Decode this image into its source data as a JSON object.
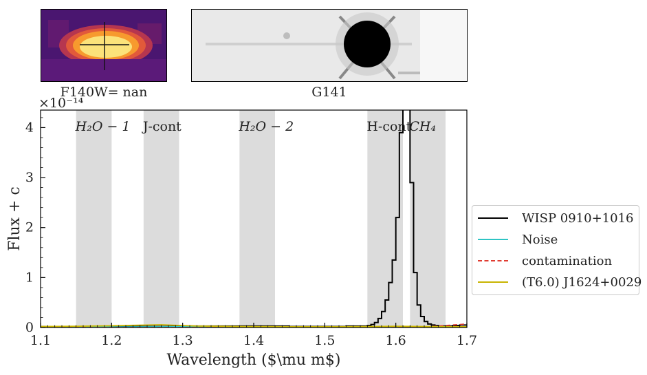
{
  "direct_image": {
    "label": "F140W= nan"
  },
  "grism_image": {
    "label": "G141"
  },
  "colors": {
    "spectrum": "#000000",
    "noise": "#2ec4c4",
    "contamination": "#e03c31",
    "template": "#c8b400",
    "band": "#dcdcdc"
  },
  "chart_data": {
    "type": "line",
    "xlabel": "Wavelength ($\\mu m$)",
    "ylabel": "Flux + c",
    "y_offset_text": "×10⁻¹⁴",
    "xlim": [
      1.1,
      1.7
    ],
    "ylim": [
      0,
      4.35
    ],
    "x_ticks": [
      {
        "v": 1.1,
        "label": "1.1"
      },
      {
        "v": 1.2,
        "label": "1.2"
      },
      {
        "v": 1.3,
        "label": "1.3"
      },
      {
        "v": 1.4,
        "label": "1.4"
      },
      {
        "v": 1.5,
        "label": "1.5"
      },
      {
        "v": 1.6,
        "label": "1.6"
      },
      {
        "v": 1.7,
        "label": "1.7"
      }
    ],
    "y_ticks": [
      {
        "v": 0,
        "label": "0"
      },
      {
        "v": 1,
        "label": "1"
      },
      {
        "v": 2,
        "label": "2"
      },
      {
        "v": 3,
        "label": "3"
      },
      {
        "v": 4,
        "label": "4"
      }
    ],
    "bands": [
      {
        "x0": 1.15,
        "x1": 1.2,
        "label": "H₂O − 1",
        "italic": true
      },
      {
        "x0": 1.245,
        "x1": 1.295,
        "label": "J-cont",
        "italic": false
      },
      {
        "x0": 1.38,
        "x1": 1.43,
        "label": "H₂O − 2",
        "italic": true
      },
      {
        "x0": 1.56,
        "x1": 1.61,
        "label": "H-cont",
        "italic": false
      },
      {
        "x0": 1.62,
        "x1": 1.67,
        "label": "CH₄",
        "italic": true
      }
    ],
    "series": [
      {
        "name": "WISP 0910+1016",
        "style": "step",
        "x": [
          1.1,
          1.3,
          1.45,
          1.53,
          1.56,
          1.565,
          1.57,
          1.575,
          1.58,
          1.585,
          1.59,
          1.595,
          1.6,
          1.605,
          1.61,
          1.615,
          1.62,
          1.625,
          1.63,
          1.635,
          1.64,
          1.645,
          1.65,
          1.655,
          1.66,
          1.67,
          1.68,
          1.69,
          1.7
        ],
        "y": [
          0.02,
          0.03,
          0.02,
          0.03,
          0.04,
          0.06,
          0.1,
          0.18,
          0.32,
          0.55,
          0.9,
          1.35,
          2.2,
          3.9,
          4.6,
          4.6,
          2.9,
          1.1,
          0.45,
          0.22,
          0.12,
          0.07,
          0.05,
          0.04,
          0.03,
          0.03,
          0.04,
          0.05,
          0.06
        ]
      },
      {
        "name": "Noise",
        "style": "line",
        "x": [
          1.1,
          1.2,
          1.3,
          1.4,
          1.5,
          1.6,
          1.65,
          1.7
        ],
        "y": [
          0.01,
          0.01,
          0.015,
          0.01,
          0.01,
          0.012,
          0.01,
          0.01
        ]
      },
      {
        "name": "contamination",
        "style": "dashed",
        "x": [
          1.1,
          1.2,
          1.3,
          1.4,
          1.5,
          1.6,
          1.64,
          1.66,
          1.68,
          1.7
        ],
        "y": [
          0.0,
          0.0,
          0.0,
          0.0,
          0.0,
          0.0,
          0.01,
          0.03,
          0.05,
          0.07
        ]
      },
      {
        "name": "(T6.0) J1624+0029",
        "style": "line",
        "x": [
          1.1,
          1.15,
          1.2,
          1.25,
          1.27,
          1.29,
          1.32,
          1.38,
          1.45,
          1.52,
          1.57,
          1.6,
          1.64,
          1.68,
          1.7
        ],
        "y": [
          0.02,
          0.025,
          0.035,
          0.05,
          0.055,
          0.045,
          0.03,
          0.02,
          0.015,
          0.015,
          0.02,
          0.025,
          0.02,
          0.015,
          0.015
        ]
      }
    ]
  }
}
